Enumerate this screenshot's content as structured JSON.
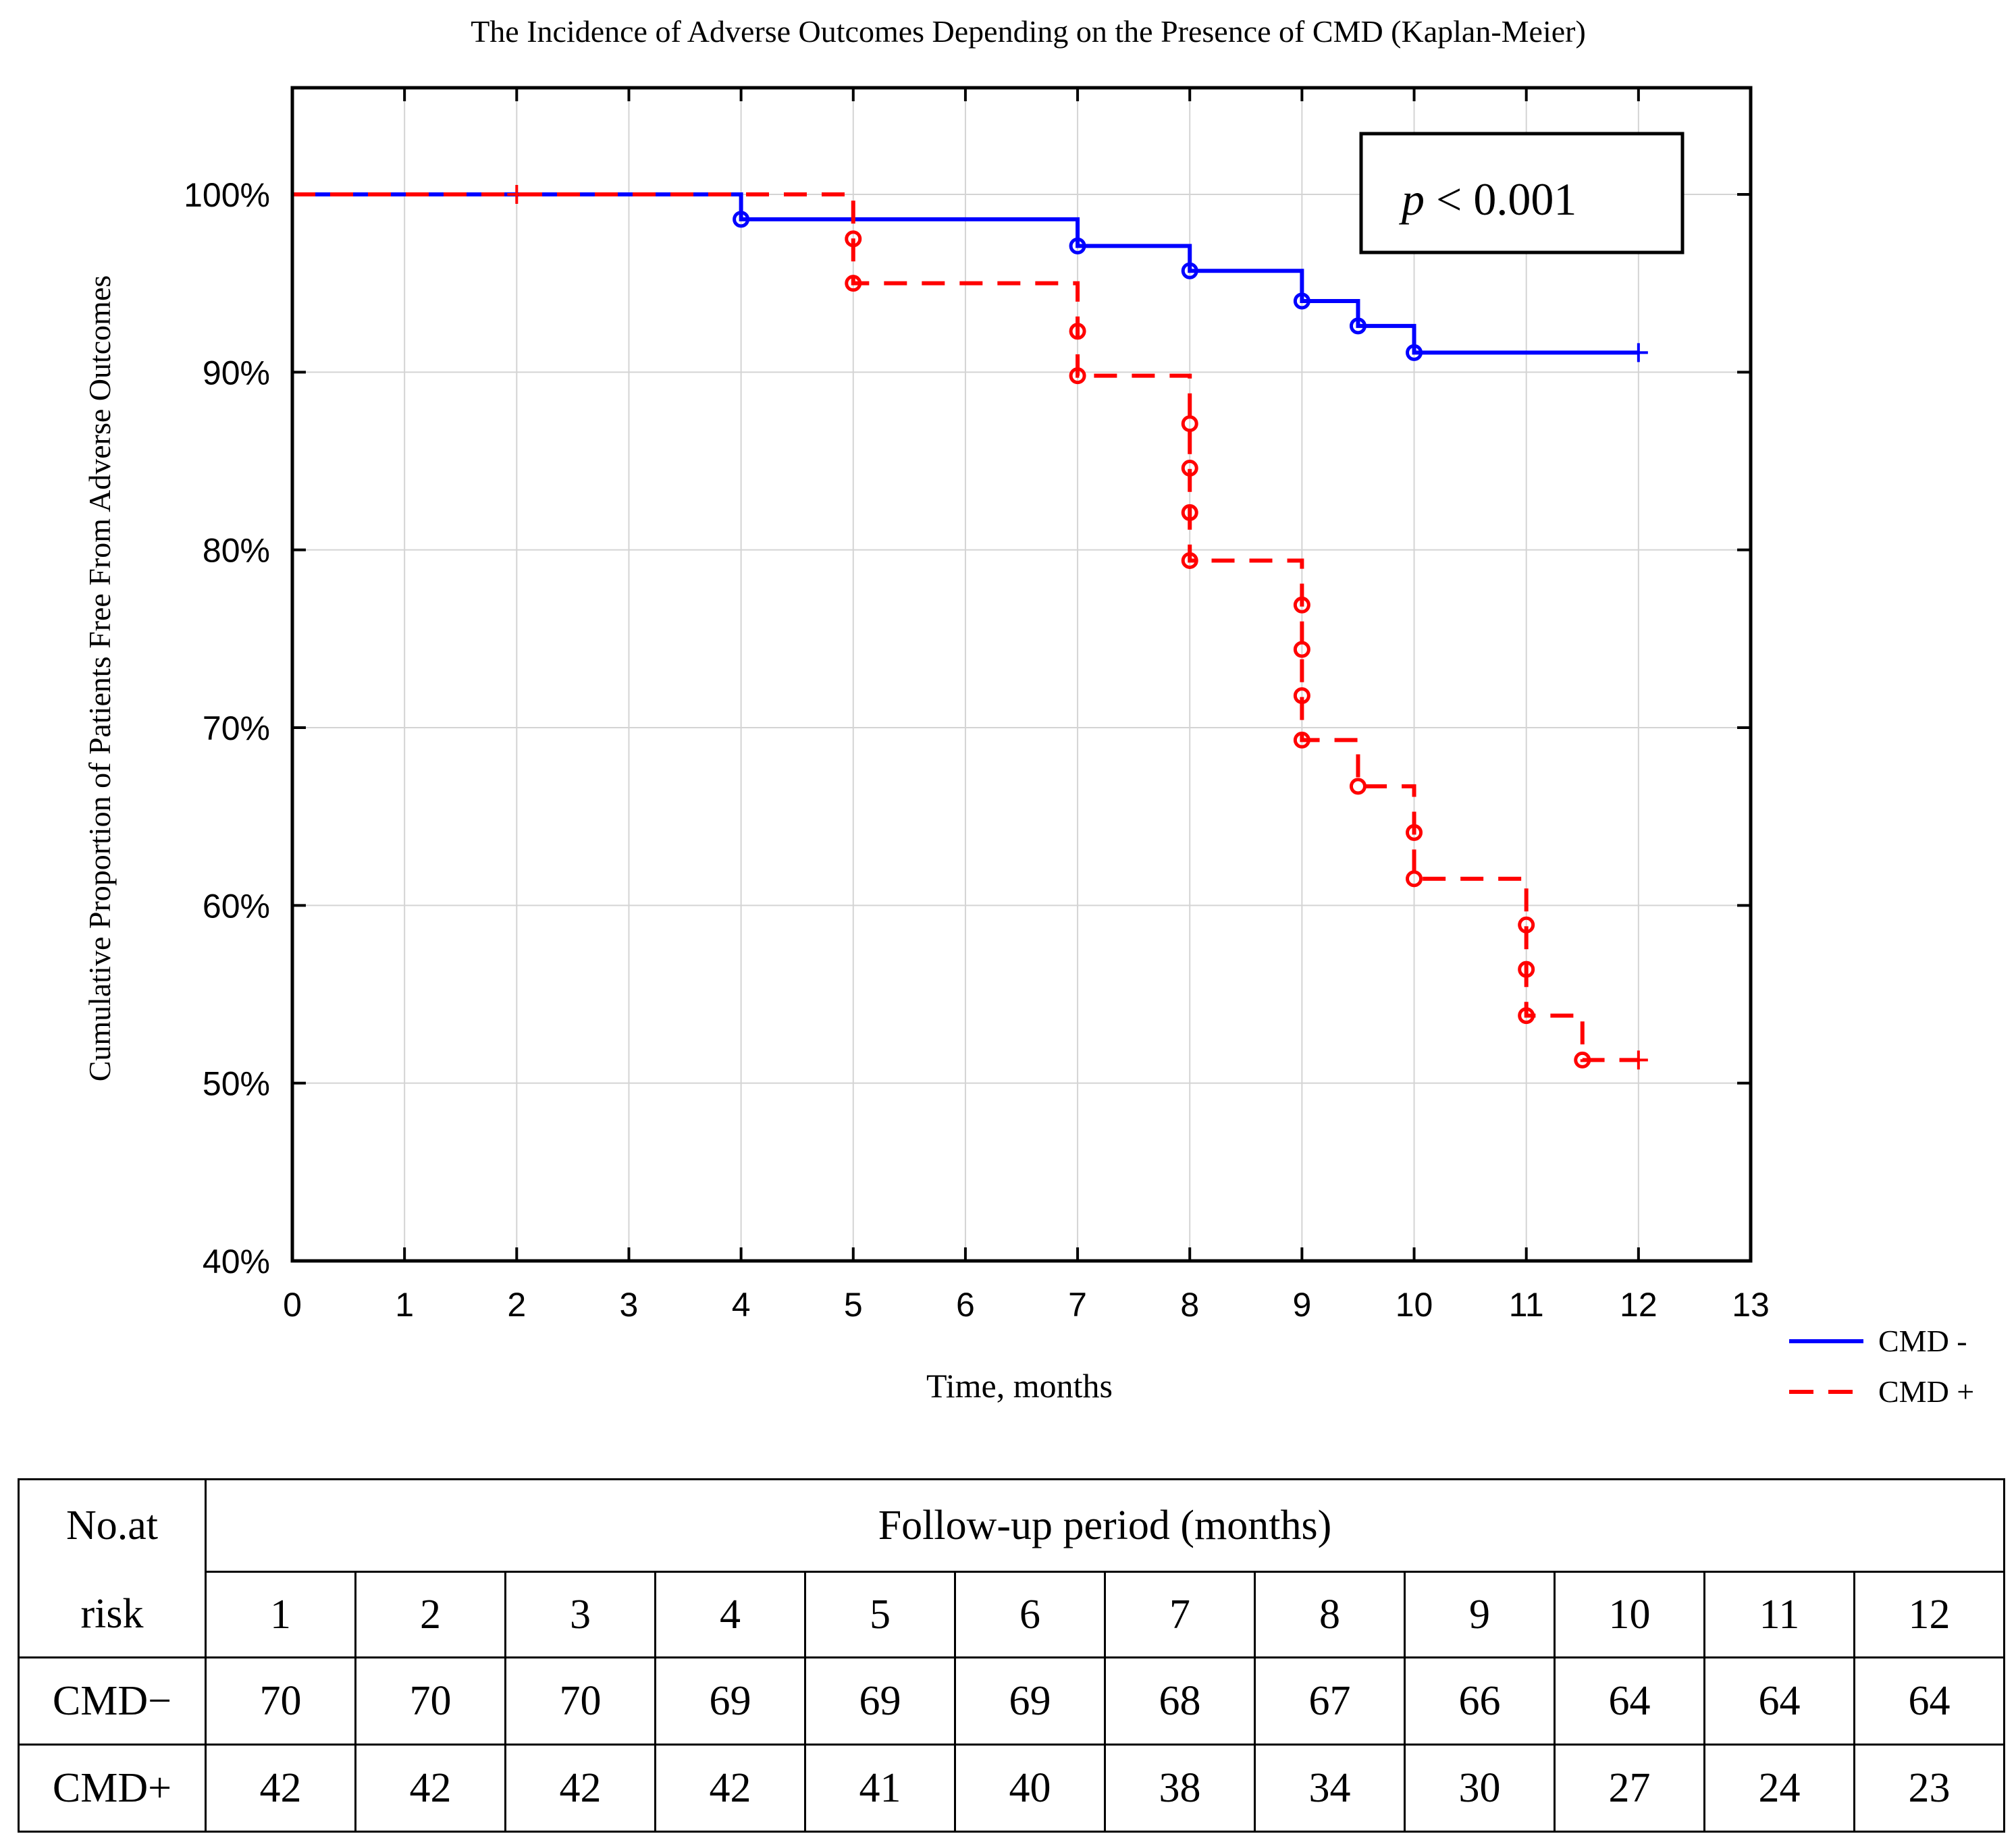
{
  "chart_data": {
    "type": "line",
    "subtype": "kaplan-meier step",
    "title": "The Incidence of Adverse Outcomes Depending on the Presence of CMD (Kaplan-Meier)",
    "xlabel": "Time, months",
    "ylabel": "Cumulative Proportion of Patients Free From Adverse Outcomes",
    "xlim": [
      0,
      13
    ],
    "ylim": [
      40,
      106
    ],
    "x_ticks": [
      "0",
      "1",
      "2",
      "3",
      "4",
      "5",
      "6",
      "7",
      "8",
      "9",
      "10",
      "11",
      "12",
      "13"
    ],
    "x_tick_values": [
      0,
      1,
      2,
      3,
      4,
      5,
      6,
      7,
      8,
      9,
      10,
      11,
      12,
      13
    ],
    "y_ticks": [
      "40%",
      "50%",
      "60%",
      "70%",
      "80%",
      "90%",
      "100%"
    ],
    "y_tick_values": [
      40,
      50,
      60,
      70,
      80,
      90,
      100
    ],
    "grid": true,
    "annotation": {
      "italic": "p",
      "rest": " < 0.001"
    },
    "legend_position": "bottom-right outside",
    "series": [
      {
        "name": "CMD -",
        "color": "#0000ff",
        "style": "solid",
        "steps": [
          [
            0,
            100
          ],
          [
            4,
            98.6
          ],
          [
            7,
            97.1
          ],
          [
            8,
            95.7
          ],
          [
            9,
            94.0
          ],
          [
            9.5,
            92.6
          ],
          [
            10,
            91.1
          ]
        ],
        "end_x": 12,
        "censor_marks": [
          12
        ]
      },
      {
        "name": "CMD +",
        "color": "#ff0000",
        "style": "dashed",
        "steps": [
          [
            0,
            100
          ],
          [
            5,
            97.5
          ],
          [
            5,
            95.0
          ],
          [
            7,
            92.3
          ],
          [
            7,
            89.8
          ],
          [
            8,
            87.1
          ],
          [
            8,
            84.6
          ],
          [
            8,
            82.1
          ],
          [
            8,
            79.4
          ],
          [
            9,
            76.9
          ],
          [
            9,
            74.4
          ],
          [
            9,
            71.8
          ],
          [
            9,
            69.3
          ],
          [
            9.5,
            66.7
          ],
          [
            10,
            64.1
          ],
          [
            10,
            61.5
          ],
          [
            11,
            58.9
          ],
          [
            11,
            56.4
          ],
          [
            11,
            53.8
          ],
          [
            11.5,
            51.3
          ]
        ],
        "end_x": 12,
        "censor_marks": [
          2,
          12
        ]
      }
    ]
  },
  "risk_table": {
    "corner_line1": "No.at",
    "corner_line2": "risk",
    "header": "Follow-up period (months)",
    "months": [
      "1",
      "2",
      "3",
      "4",
      "5",
      "6",
      "7",
      "8",
      "9",
      "10",
      "11",
      "12"
    ],
    "rows": [
      {
        "label": "CMD−",
        "values": [
          "70",
          "70",
          "70",
          "69",
          "69",
          "69",
          "68",
          "67",
          "66",
          "64",
          "64",
          "64"
        ]
      },
      {
        "label": "CMD+",
        "values": [
          "42",
          "42",
          "42",
          "42",
          "41",
          "40",
          "38",
          "34",
          "30",
          "27",
          "24",
          "23"
        ]
      }
    ]
  }
}
